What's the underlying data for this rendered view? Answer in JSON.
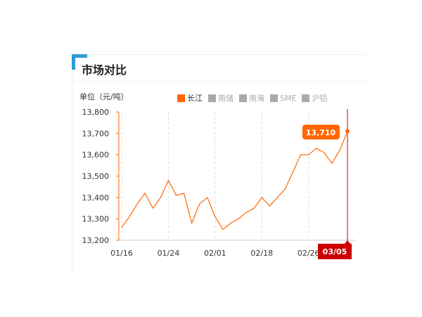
{
  "section_title": "市场对比",
  "unit_label": "单位（元/吨）",
  "legend": [
    {
      "label": "长江",
      "active": true
    },
    {
      "label": "南储",
      "active": false
    },
    {
      "label": "南海",
      "active": false
    },
    {
      "label": "SME",
      "active": false
    },
    {
      "label": "沪铝",
      "active": false
    }
  ],
  "colors": {
    "line": "#f60",
    "crosshair": "#c00",
    "accent": "#2e9ad6"
  },
  "tooltip": {
    "value": "13,710",
    "date": "03/05"
  },
  "chart_data": {
    "type": "line",
    "title": "",
    "ylim": [
      13200,
      13800
    ],
    "yticks": [
      "13,200",
      "13,300",
      "13,400",
      "13,500",
      "13,600",
      "13,700",
      "13,800"
    ],
    "xtick_labels": [
      {
        "index": 0,
        "label": "01/16"
      },
      {
        "index": 6,
        "label": "01/24"
      },
      {
        "index": 12,
        "label": "02/01"
      },
      {
        "index": 18,
        "label": "02/18"
      },
      {
        "index": 24,
        "label": "02/26"
      }
    ],
    "grid": "vertical dashed",
    "series": [
      {
        "name": "长江",
        "values": [
          13260,
          13310,
          13370,
          13420,
          13350,
          13400,
          13480,
          13410,
          13420,
          13280,
          13370,
          13400,
          13310,
          13250,
          13280,
          13300,
          13330,
          13350,
          13400,
          13360,
          13400,
          13440,
          13520,
          13600,
          13600,
          13630,
          13610,
          13560,
          13620,
          13710
        ]
      }
    ]
  }
}
